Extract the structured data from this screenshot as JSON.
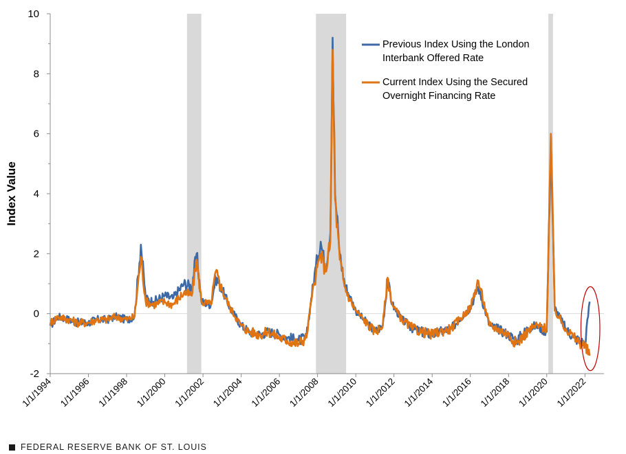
{
  "chart_data": {
    "type": "line",
    "title": "",
    "xlabel": "",
    "ylabel": "Index Value",
    "ylim": [
      -2,
      10
    ],
    "yticks": [
      -2,
      0,
      2,
      4,
      6,
      8,
      10
    ],
    "xlim": [
      "1994-01-01",
      "2022-12-31"
    ],
    "xtick_labels": [
      "1/1/1994",
      "1/1/1996",
      "1/1/1998",
      "1/1/2000",
      "1/1/2002",
      "1/1/2004",
      "1/1/2006",
      "1/1/2008",
      "1/1/2010",
      "1/1/2012",
      "1/1/2014",
      "1/1/2016",
      "1/1/2018",
      "1/1/2020",
      "1/1/2022"
    ],
    "xtick_dates": [
      "1994-01-01",
      "1996-01-01",
      "1998-01-01",
      "2000-01-01",
      "2002-01-01",
      "2004-01-01",
      "2006-01-01",
      "2008-01-01",
      "2010-01-01",
      "2012-01-01",
      "2014-01-01",
      "2016-01-01",
      "2018-01-01",
      "2020-01-01",
      "2022-01-01"
    ],
    "recessions": [
      [
        "2001-03-01",
        "2001-11-30"
      ],
      [
        "2007-12-01",
        "2009-06-30"
      ],
      [
        "2020-02-01",
        "2020-04-30"
      ]
    ],
    "grid": false,
    "legend_position": "top-right",
    "series": [
      {
        "name": "Previous Index Using the London Interbank Offered Rate",
        "color": "#3d6aa6",
        "x": [
          "1994-01-01",
          "1994-06-01",
          "1995-01-01",
          "1995-06-01",
          "1996-01-01",
          "1996-06-01",
          "1997-01-01",
          "1997-06-01",
          "1998-01-01",
          "1998-06-01",
          "1998-10-01",
          "1999-01-01",
          "1999-06-01",
          "2000-01-01",
          "2000-06-01",
          "2001-01-01",
          "2001-06-01",
          "2001-09-01",
          "2001-12-01",
          "2002-06-01",
          "2002-09-01",
          "2003-01-01",
          "2003-06-01",
          "2004-01-01",
          "2004-06-01",
          "2005-01-01",
          "2005-06-01",
          "2006-01-01",
          "2006-06-01",
          "2007-01-01",
          "2007-06-01",
          "2007-09-01",
          "2007-12-01",
          "2008-03-01",
          "2008-06-01",
          "2008-09-01",
          "2008-10-15",
          "2008-12-01",
          "2009-03-01",
          "2009-06-01",
          "2009-09-01",
          "2010-01-01",
          "2010-06-01",
          "2011-01-01",
          "2011-06-01",
          "2011-09-01",
          "2011-12-01",
          "2012-06-01",
          "2013-01-01",
          "2013-06-01",
          "2014-01-01",
          "2014-06-01",
          "2015-01-01",
          "2015-06-01",
          "2016-01-01",
          "2016-06-01",
          "2017-01-01",
          "2017-06-01",
          "2018-01-01",
          "2018-06-01",
          "2019-01-01",
          "2019-06-01",
          "2020-01-01",
          "2020-03-20",
          "2020-06-01",
          "2021-01-01",
          "2021-06-01",
          "2022-01-01",
          "2022-04-01"
        ],
        "values": [
          -0.4,
          -0.1,
          -0.2,
          -0.3,
          -0.3,
          -0.2,
          -0.2,
          -0.1,
          -0.2,
          -0.1,
          2.3,
          0.5,
          0.4,
          0.6,
          0.5,
          1.0,
          0.9,
          2.0,
          0.4,
          0.3,
          1.2,
          0.8,
          0.2,
          -0.4,
          -0.6,
          -0.7,
          -0.6,
          -0.7,
          -0.8,
          -0.9,
          -0.8,
          0.5,
          1.6,
          2.4,
          1.5,
          2.7,
          9.2,
          4.0,
          2.0,
          1.0,
          0.6,
          0.1,
          -0.2,
          -0.6,
          -0.4,
          1.1,
          0.3,
          -0.2,
          -0.5,
          -0.6,
          -0.7,
          -0.6,
          -0.5,
          -0.2,
          0.2,
          0.9,
          -0.4,
          -0.5,
          -0.7,
          -0.9,
          -0.5,
          -0.4,
          -0.6,
          5.9,
          0.2,
          -0.5,
          -0.8,
          -1.0,
          0.4
        ]
      },
      {
        "name": "Current Index Using the Secured Overnight Financing Rate",
        "color": "#e07412",
        "x": [
          "1994-01-01",
          "1994-06-01",
          "1995-01-01",
          "1995-06-01",
          "1996-01-01",
          "1996-06-01",
          "1997-01-01",
          "1997-06-01",
          "1998-01-01",
          "1998-06-01",
          "1998-10-01",
          "1999-01-01",
          "1999-06-01",
          "2000-01-01",
          "2000-06-01",
          "2001-01-01",
          "2001-06-01",
          "2001-09-01",
          "2001-12-01",
          "2002-06-01",
          "2002-09-01",
          "2003-01-01",
          "2003-06-01",
          "2004-01-01",
          "2004-06-01",
          "2005-01-01",
          "2005-06-01",
          "2006-01-01",
          "2006-06-01",
          "2007-01-01",
          "2007-06-01",
          "2007-09-01",
          "2007-12-01",
          "2008-03-01",
          "2008-06-01",
          "2008-09-01",
          "2008-10-15",
          "2008-12-01",
          "2009-03-01",
          "2009-06-01",
          "2009-09-01",
          "2010-01-01",
          "2010-06-01",
          "2011-01-01",
          "2011-06-01",
          "2011-09-01",
          "2011-12-01",
          "2012-06-01",
          "2013-01-01",
          "2013-06-01",
          "2014-01-01",
          "2014-06-01",
          "2015-01-01",
          "2015-06-01",
          "2016-01-01",
          "2016-06-01",
          "2017-01-01",
          "2017-06-01",
          "2018-01-01",
          "2018-06-01",
          "2019-01-01",
          "2019-06-01",
          "2020-01-01",
          "2020-03-20",
          "2020-06-01",
          "2021-01-01",
          "2021-06-01",
          "2022-01-01",
          "2022-04-01"
        ],
        "values": [
          -0.3,
          -0.1,
          -0.2,
          -0.3,
          -0.3,
          -0.2,
          -0.2,
          -0.1,
          -0.2,
          -0.1,
          1.9,
          0.4,
          0.3,
          0.4,
          0.3,
          0.7,
          0.6,
          1.8,
          0.4,
          0.3,
          1.4,
          0.8,
          0.2,
          -0.4,
          -0.6,
          -0.7,
          -0.6,
          -0.8,
          -0.9,
          -1.0,
          -0.8,
          0.4,
          1.3,
          2.0,
          1.4,
          2.4,
          8.8,
          3.8,
          1.8,
          0.9,
          0.5,
          0.1,
          -0.2,
          -0.6,
          -0.4,
          1.2,
          0.3,
          -0.2,
          -0.5,
          -0.6,
          -0.7,
          -0.6,
          -0.5,
          -0.2,
          0.2,
          1.1,
          -0.4,
          -0.5,
          -0.7,
          -1.0,
          -0.6,
          -0.4,
          -0.5,
          6.0,
          0.1,
          -0.5,
          -0.8,
          -1.1,
          -1.4
        ]
      }
    ],
    "annotations": [
      {
        "type": "ellipse",
        "color": "#c00000",
        "x_center": "2022-04-15",
        "y_center": -0.5,
        "x_radius_months": 6,
        "y_radius": 1.4
      }
    ]
  },
  "footer": {
    "source": "FEDERAL RESERVE BANK OF ST. LOUIS"
  }
}
